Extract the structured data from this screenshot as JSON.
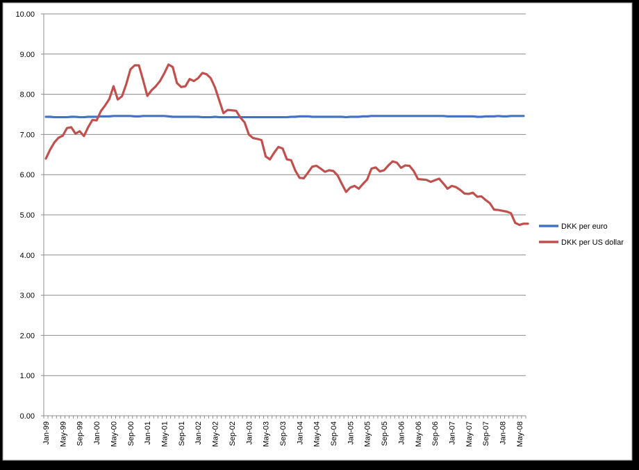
{
  "chart_data": {
    "type": "line",
    "title": "",
    "xlabel": "",
    "ylabel": "",
    "ylim": [
      0,
      10
    ],
    "y_ticks": [
      "0.00",
      "1.00",
      "2.00",
      "3.00",
      "4.00",
      "5.00",
      "6.00",
      "7.00",
      "8.00",
      "9.00",
      "10.00"
    ],
    "x_tick_labels": [
      "Jan-99",
      "May-99",
      "Sep-99",
      "Jan-00",
      "May-00",
      "Sep-00",
      "Jan-01",
      "May-01",
      "Sep-01",
      "Jan-02",
      "May-02",
      "Sep-02",
      "Jan-03",
      "May-03",
      "Sep-03",
      "Jan-04",
      "May-04",
      "Sep-04",
      "Jan-05",
      "May-05",
      "Sep-05",
      "Jan-06",
      "May-06",
      "Sep-06",
      "Jan-07",
      "May-07",
      "Sep-07",
      "Jan-08",
      "May-08"
    ],
    "x_start": "Jan-99",
    "x_frequency": "monthly",
    "grid": "horizontal",
    "legend_position": "right",
    "series": [
      {
        "name": "DKK per euro",
        "color": "#4472C4",
        "values": [
          7.44,
          7.44,
          7.43,
          7.43,
          7.43,
          7.43,
          7.44,
          7.44,
          7.43,
          7.43,
          7.44,
          7.44,
          7.44,
          7.45,
          7.45,
          7.45,
          7.46,
          7.46,
          7.46,
          7.46,
          7.46,
          7.45,
          7.45,
          7.46,
          7.46,
          7.46,
          7.46,
          7.46,
          7.46,
          7.45,
          7.44,
          7.44,
          7.44,
          7.44,
          7.44,
          7.44,
          7.44,
          7.43,
          7.43,
          7.43,
          7.44,
          7.43,
          7.43,
          7.43,
          7.43,
          7.43,
          7.43,
          7.43,
          7.43,
          7.43,
          7.43,
          7.43,
          7.43,
          7.43,
          7.43,
          7.43,
          7.43,
          7.43,
          7.44,
          7.44,
          7.45,
          7.45,
          7.45,
          7.44,
          7.44,
          7.44,
          7.44,
          7.44,
          7.44,
          7.44,
          7.44,
          7.43,
          7.44,
          7.44,
          7.44,
          7.45,
          7.45,
          7.46,
          7.46,
          7.46,
          7.46,
          7.46,
          7.46,
          7.46,
          7.46,
          7.46,
          7.46,
          7.46,
          7.46,
          7.46,
          7.46,
          7.46,
          7.46,
          7.46,
          7.46,
          7.45,
          7.45,
          7.45,
          7.45,
          7.45,
          7.45,
          7.45,
          7.44,
          7.44,
          7.45,
          7.45,
          7.45,
          7.46,
          7.45,
          7.45,
          7.46,
          7.46,
          7.46,
          7.46
        ]
      },
      {
        "name": "DKK per US dollar",
        "color": "#C0504D",
        "values": [
          6.4,
          6.62,
          6.8,
          6.92,
          6.97,
          7.16,
          7.18,
          7.02,
          7.08,
          6.96,
          7.18,
          7.36,
          7.35,
          7.58,
          7.72,
          7.88,
          8.2,
          7.87,
          7.95,
          8.25,
          8.62,
          8.72,
          8.72,
          8.35,
          7.96,
          8.1,
          8.2,
          8.33,
          8.52,
          8.74,
          8.68,
          8.28,
          8.18,
          8.2,
          8.38,
          8.33,
          8.4,
          8.53,
          8.5,
          8.4,
          8.17,
          7.85,
          7.53,
          7.61,
          7.6,
          7.59,
          7.42,
          7.3,
          7.0,
          6.91,
          6.89,
          6.86,
          6.45,
          6.38,
          6.55,
          6.69,
          6.65,
          6.38,
          6.36,
          6.1,
          5.92,
          5.91,
          6.05,
          6.2,
          6.22,
          6.15,
          6.07,
          6.11,
          6.09,
          5.98,
          5.77,
          5.57,
          5.68,
          5.72,
          5.65,
          5.77,
          5.88,
          6.15,
          6.18,
          6.08,
          6.11,
          6.23,
          6.33,
          6.3,
          6.17,
          6.23,
          6.22,
          6.09,
          5.89,
          5.88,
          5.87,
          5.82,
          5.86,
          5.9,
          5.78,
          5.65,
          5.72,
          5.69,
          5.62,
          5.53,
          5.52,
          5.55,
          5.45,
          5.46,
          5.37,
          5.29,
          5.13,
          5.12,
          5.1,
          5.08,
          5.04,
          4.8,
          4.75,
          4.78,
          4.78
        ]
      }
    ]
  }
}
